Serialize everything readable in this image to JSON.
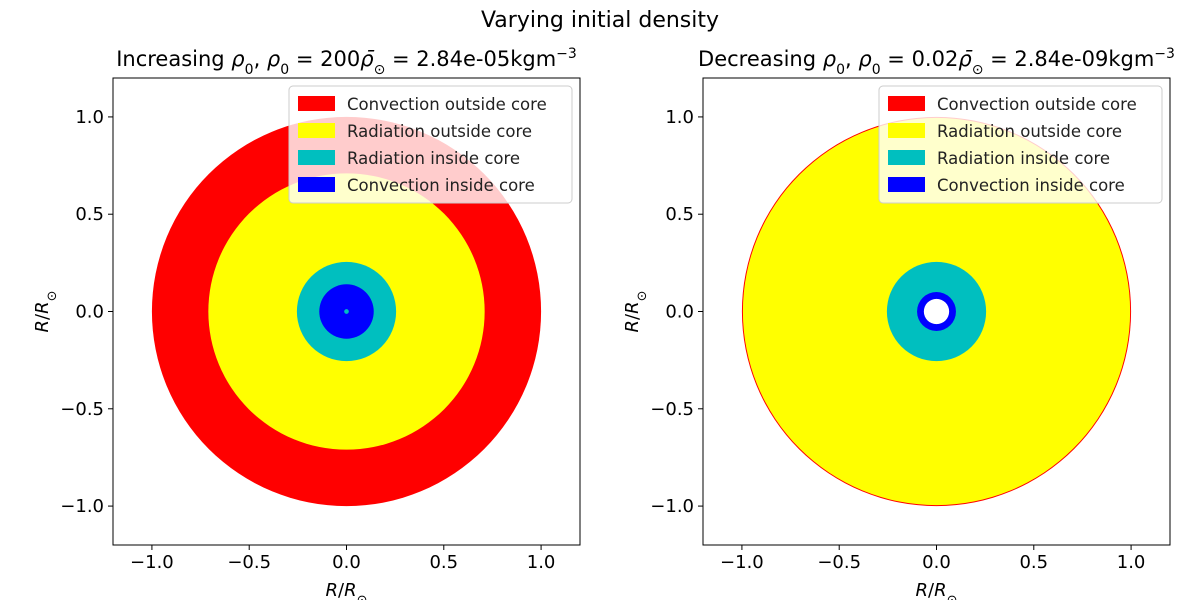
{
  "figure": {
    "suptitle": "Varying initial density"
  },
  "colors": {
    "convection_outside": "#ff0000",
    "radiation_outside": "#ffff00",
    "radiation_inside": "#00bfbf",
    "convection_inside": "#0000ff",
    "background": "#ffffff",
    "legend_text": "#222222"
  },
  "chart_data": [
    {
      "type": "other",
      "title": "Increasing ρ₀, ρ₀ = 200ρ̄⊙ = 2.84e-05kgm⁻³",
      "xlabel": "R/R⊙",
      "ylabel": "R/R⊙",
      "xlim": [
        -1.2,
        1.2
      ],
      "ylim": [
        -1.2,
        1.2
      ],
      "xticks": [
        -1.0,
        -0.5,
        0.0,
        0.5,
        1.0
      ],
      "yticks": [
        -1.0,
        -0.5,
        0.0,
        0.5,
        1.0
      ],
      "tick_labels": [
        "−1.0",
        "−0.5",
        "0.0",
        "0.5",
        "1.0"
      ],
      "grid": false,
      "legend": {
        "placement": "upper right",
        "entries": [
          {
            "label": "Convection outside core",
            "color": "#ff0000"
          },
          {
            "label": "Radiation outside core",
            "color": "#ffff00"
          },
          {
            "label": "Radiation inside core",
            "color": "#00bfbf"
          },
          {
            "label": "Convection inside core",
            "color": "#0000ff"
          }
        ]
      },
      "shells": [
        {
          "radius": 1.0,
          "region": "Convection outside core",
          "color": "#ff0000"
        },
        {
          "radius": 0.71,
          "region": "Radiation outside core",
          "color": "#ffff00"
        },
        {
          "radius": 0.255,
          "region": "Radiation inside core",
          "color": "#00bfbf"
        },
        {
          "radius": 0.14,
          "region": "Convection inside core",
          "color": "#0000ff"
        },
        {
          "radius": 0.012,
          "region": "Radiation inside core",
          "color": "#00bfbf"
        }
      ]
    },
    {
      "type": "other",
      "title": "Decreasing ρ₀, ρ₀ = 0.02ρ̄⊙ = 2.84e-09kgm⁻³",
      "xlabel": "R/R⊙",
      "ylabel": "R/R⊙",
      "xlim": [
        -1.2,
        1.2
      ],
      "ylim": [
        -1.2,
        1.2
      ],
      "xticks": [
        -1.0,
        -0.5,
        0.0,
        0.5,
        1.0
      ],
      "yticks": [
        -1.0,
        -0.5,
        0.0,
        0.5,
        1.0
      ],
      "tick_labels": [
        "−1.0",
        "−0.5",
        "0.0",
        "0.5",
        "1.0"
      ],
      "grid": false,
      "legend": {
        "placement": "upper right",
        "entries": [
          {
            "label": "Convection outside core",
            "color": "#ff0000"
          },
          {
            "label": "Radiation outside core",
            "color": "#ffff00"
          },
          {
            "label": "Radiation inside core",
            "color": "#00bfbf"
          },
          {
            "label": "Convection inside core",
            "color": "#0000ff"
          }
        ]
      },
      "shells": [
        {
          "radius": 1.0,
          "region": "Convection outside core",
          "color": "#ff0000"
        },
        {
          "radius": 0.995,
          "region": "Radiation outside core",
          "color": "#ffff00"
        },
        {
          "radius": 0.255,
          "region": "Radiation inside core",
          "color": "#00bfbf"
        },
        {
          "radius": 0.1,
          "region": "Convection inside core",
          "color": "#0000ff"
        },
        {
          "radius": 0.065,
          "region": "Core interior (unfilled)",
          "color": "#ffffff"
        }
      ]
    }
  ]
}
